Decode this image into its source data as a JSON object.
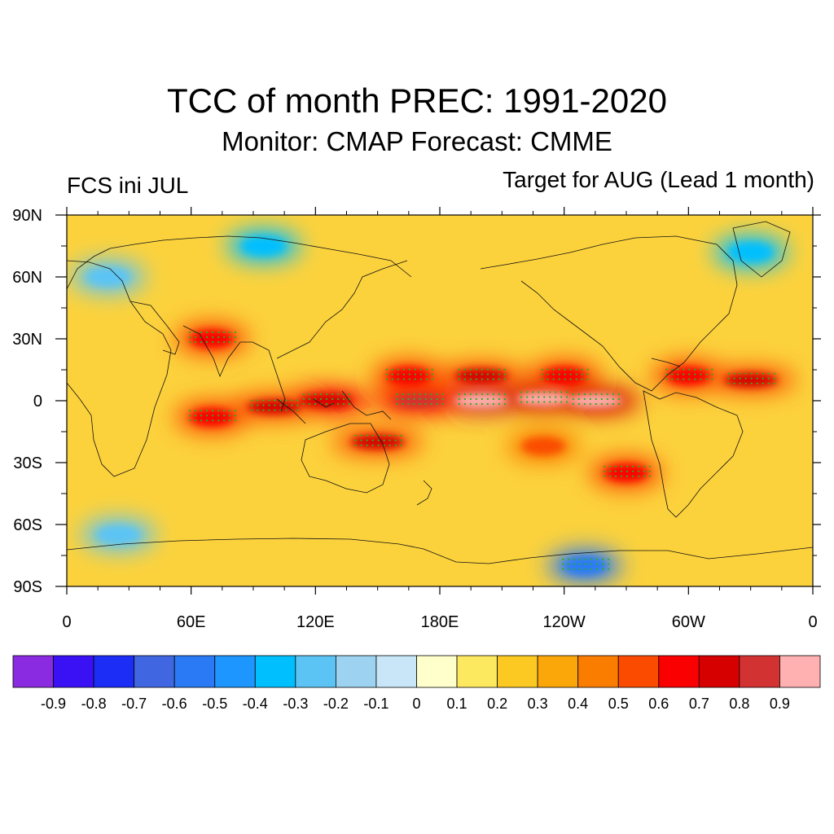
{
  "header": {
    "title": "TCC of month PREC: 1991-2020",
    "subtitle": "Monitor: CMAP   Forecast: CMME",
    "left_label": "FCS ini JUL",
    "right_label": "Target for AUG (Lead 1 month)"
  },
  "map": {
    "projection": "cylindrical-equidistant",
    "lon_range": [
      0,
      360
    ],
    "lat_range": [
      -90,
      90
    ],
    "lon_ticks": [
      {
        "value": 0,
        "label": "0"
      },
      {
        "value": 60,
        "label": "60E"
      },
      {
        "value": 120,
        "label": "120E"
      },
      {
        "value": 180,
        "label": "180E"
      },
      {
        "value": 240,
        "label": "120W"
      },
      {
        "value": 300,
        "label": "60W"
      },
      {
        "value": 360,
        "label": "0"
      }
    ],
    "lat_ticks": [
      {
        "value": 90,
        "label": "90N"
      },
      {
        "value": 60,
        "label": "60N"
      },
      {
        "value": 30,
        "label": "30N"
      },
      {
        "value": 0,
        "label": "0"
      },
      {
        "value": -30,
        "label": "30S"
      },
      {
        "value": -60,
        "label": "60S"
      },
      {
        "value": -90,
        "label": "90S"
      }
    ],
    "stipple_color": "#22b422"
  },
  "colorbar": {
    "colors": [
      "#8a2be2",
      "#3a10f5",
      "#1c2ef5",
      "#4166e1",
      "#2a7af5",
      "#1e96ff",
      "#00bfff",
      "#5cc4f5",
      "#9dd3f0",
      "#c8e6f7",
      "#ffffcc",
      "#fde960",
      "#fcc822",
      "#fba70a",
      "#fa7d00",
      "#fa4b00",
      "#fa0000",
      "#d60000",
      "#d33232",
      "#ffb0b0"
    ],
    "labels": [
      "-0.9",
      "-0.8",
      "-0.7",
      "-0.6",
      "-0.5",
      "-0.4",
      "-0.3",
      "-0.2",
      "-0.1",
      "0",
      "0.1",
      "0.2",
      "0.3",
      "0.4",
      "0.5",
      "0.6",
      "0.7",
      "0.8",
      "0.9"
    ]
  },
  "chart_data": {
    "type": "heatmap",
    "variable": "TCC of month PREC",
    "value_range": [
      -1,
      1
    ],
    "features": [
      {
        "lon": 200,
        "lat": 0,
        "value": 0.95
      },
      {
        "lon": 230,
        "lat": 1,
        "value": 0.92
      },
      {
        "lon": 255,
        "lat": 0,
        "value": 0.9
      },
      {
        "lon": 170,
        "lat": 0,
        "value": 0.8
      },
      {
        "lon": 125,
        "lat": 0,
        "value": 0.75
      },
      {
        "lon": 100,
        "lat": -3,
        "value": 0.7
      },
      {
        "lon": 70,
        "lat": -8,
        "value": 0.65
      },
      {
        "lon": 150,
        "lat": -20,
        "value": 0.7
      },
      {
        "lon": 200,
        "lat": 12,
        "value": 0.7
      },
      {
        "lon": 165,
        "lat": 12,
        "value": 0.65
      },
      {
        "lon": 240,
        "lat": 12,
        "value": 0.65
      },
      {
        "lon": 330,
        "lat": 10,
        "value": 0.7
      },
      {
        "lon": 300,
        "lat": 12,
        "value": 0.6
      },
      {
        "lon": 70,
        "lat": 30,
        "value": 0.6
      },
      {
        "lon": 270,
        "lat": -35,
        "value": 0.6
      },
      {
        "lon": 230,
        "lat": -22,
        "value": 0.5
      },
      {
        "lon": 250,
        "lat": -80,
        "value": -0.6
      },
      {
        "lon": 95,
        "lat": 75,
        "value": -0.4
      },
      {
        "lon": 330,
        "lat": 72,
        "value": -0.4
      },
      {
        "lon": 20,
        "lat": 60,
        "value": -0.3
      },
      {
        "lon": 25,
        "lat": -65,
        "value": -0.3
      }
    ]
  }
}
